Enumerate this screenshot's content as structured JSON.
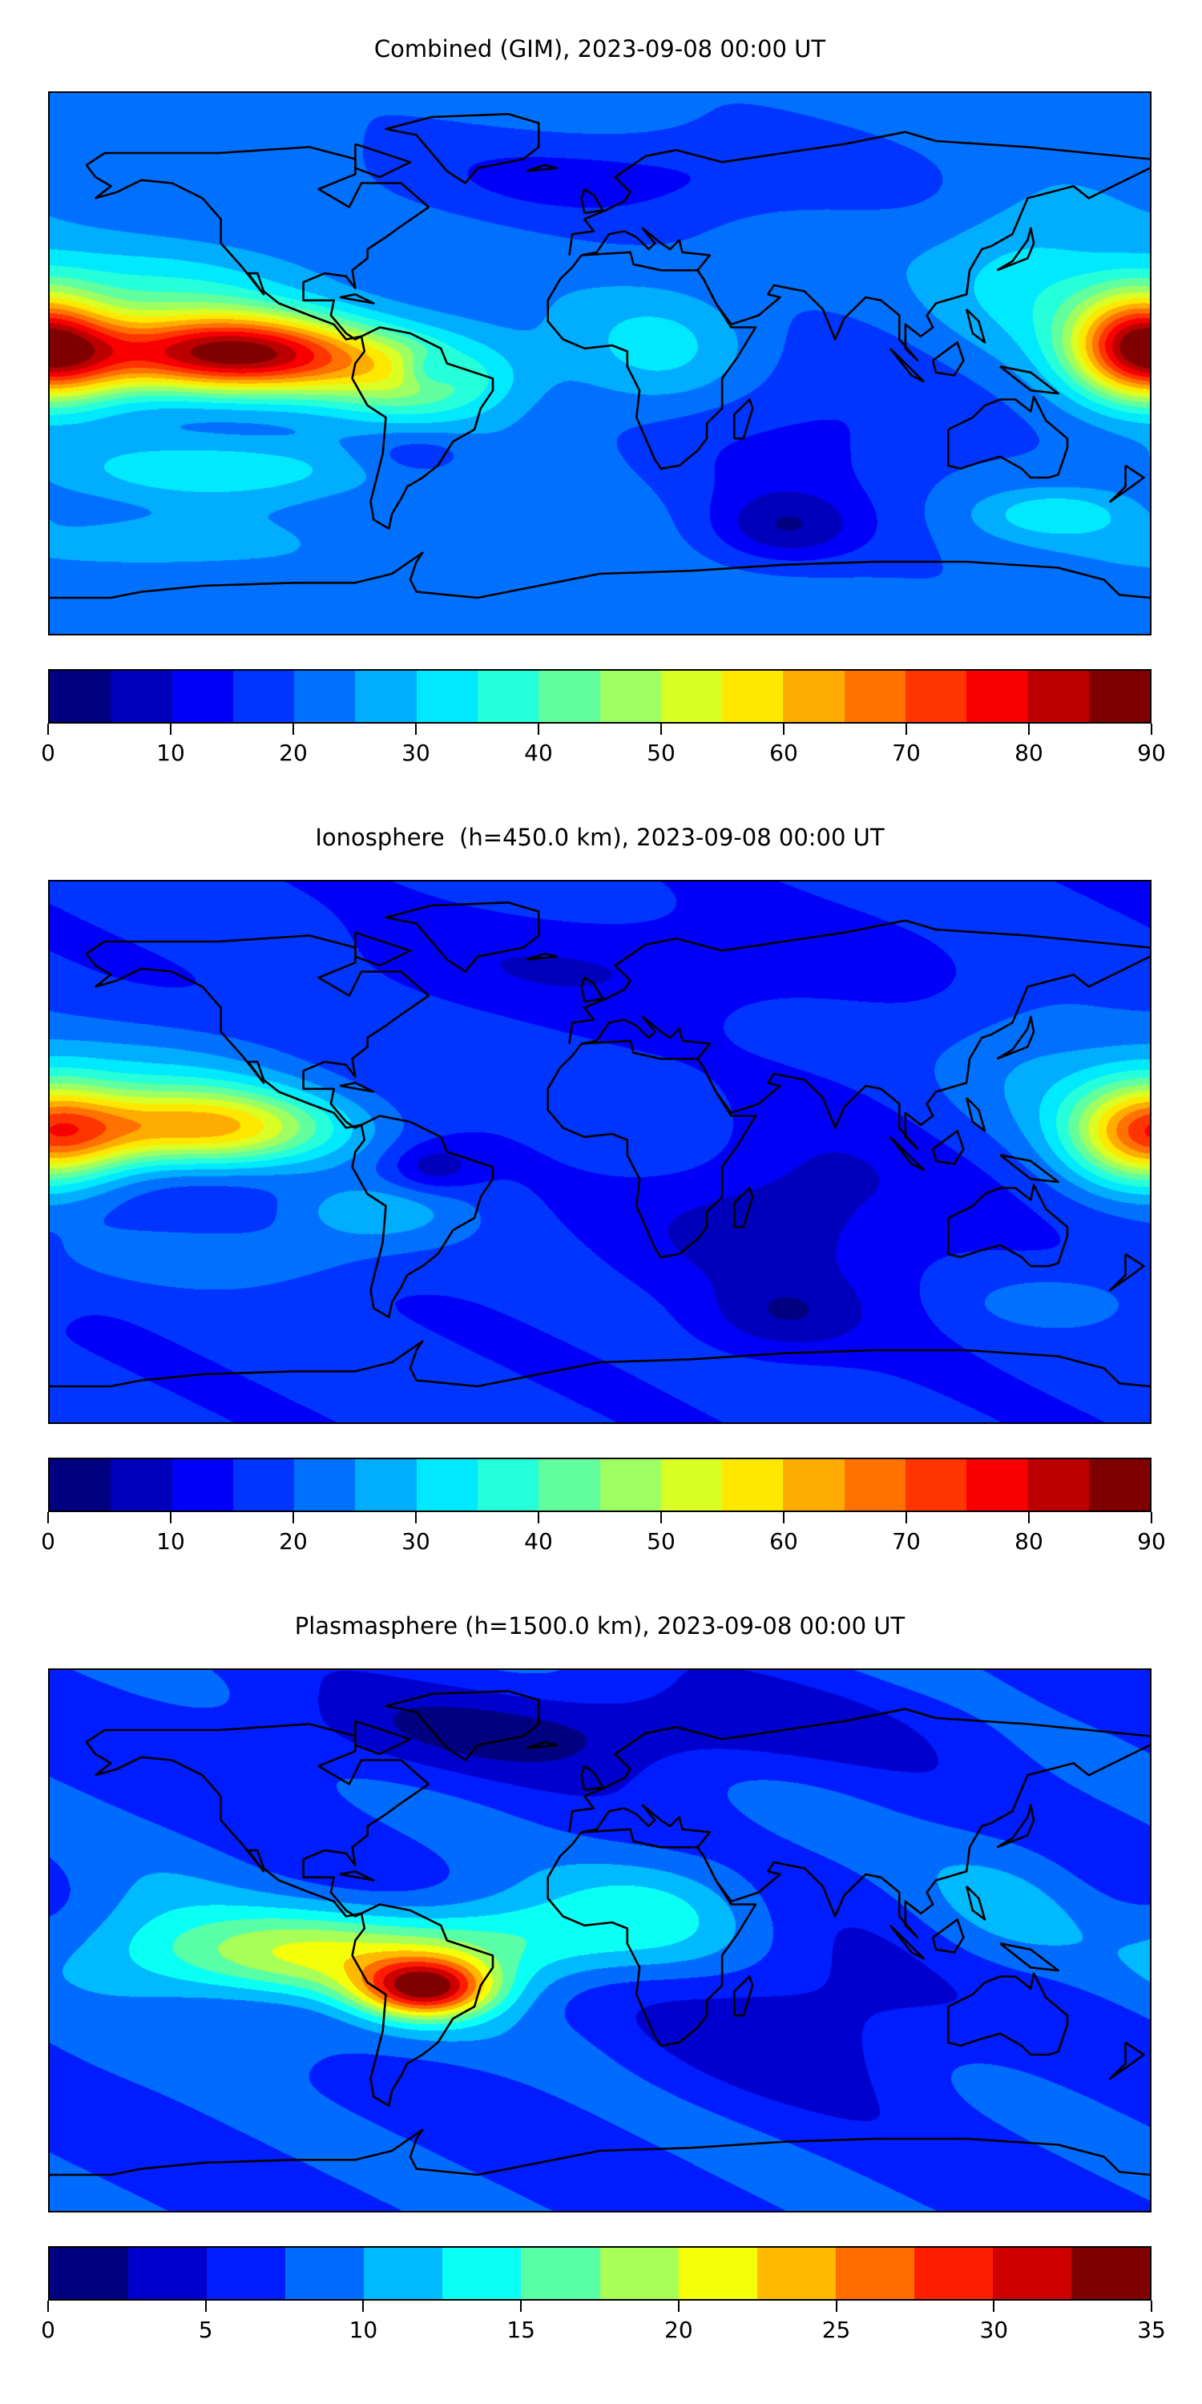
{
  "chart_data": [
    {
      "type": "heatmap",
      "title": "Combined (GIM), 2023-09-08 00:00 UT",
      "colormap": "jet",
      "levels": {
        "min": 0,
        "max": 90,
        "step": 5
      },
      "colorbar_ticks": [
        "0",
        "10",
        "20",
        "30",
        "40",
        "50",
        "60",
        "70",
        "80",
        "90"
      ],
      "lon_range": [
        -180,
        180
      ],
      "lat_range": [
        -90,
        90
      ]
    },
    {
      "type": "heatmap",
      "title": "Ionosphere  (h=450.0 km), 2023-09-08 00:00 UT",
      "colormap": "jet",
      "levels": {
        "min": 0,
        "max": 90,
        "step": 5
      },
      "colorbar_ticks": [
        "0",
        "10",
        "20",
        "30",
        "40",
        "50",
        "60",
        "70",
        "80",
        "90"
      ],
      "lon_range": [
        -180,
        180
      ],
      "lat_range": [
        -90,
        90
      ]
    },
    {
      "type": "heatmap",
      "title": "Plasmasphere (h=1500.0 km), 2023-09-08 00:00 UT",
      "colormap": "jet",
      "levels": {
        "min": 0,
        "max": 35,
        "step": 2.5
      },
      "colorbar_ticks": [
        "0",
        "5",
        "10",
        "15",
        "20",
        "25",
        "30",
        "35"
      ],
      "lon_range": [
        -180,
        180
      ],
      "lat_range": [
        -90,
        90
      ]
    }
  ]
}
